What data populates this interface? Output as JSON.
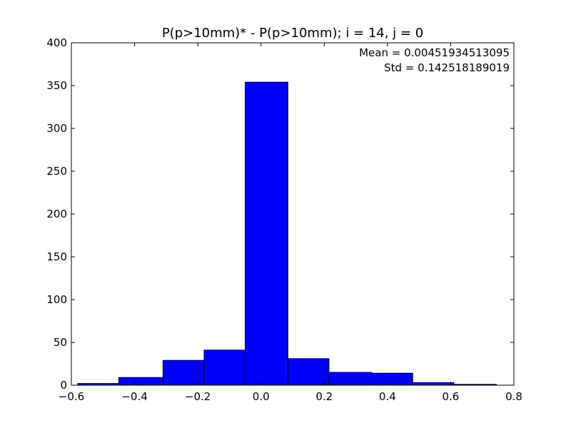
{
  "chart_data": {
    "type": "bar",
    "title": "P(p>10mm)* - P(p>10mm); i = 14, j = 0",
    "xlabel": "",
    "ylabel": "",
    "xlim": [
      -0.6,
      0.8
    ],
    "ylim": [
      0,
      400
    ],
    "xticks": [
      -0.6,
      -0.4,
      -0.2,
      0.0,
      0.2,
      0.4,
      0.6,
      0.8
    ],
    "xtick_labels": [
      "−0.6",
      "−0.4",
      "−0.2",
      "0.0",
      "0.2",
      "0.4",
      "0.6",
      "0.8"
    ],
    "yticks": [
      0,
      50,
      100,
      150,
      200,
      250,
      300,
      350,
      400
    ],
    "ytick_labels": [
      "0",
      "50",
      "100",
      "150",
      "200",
      "250",
      "300",
      "350",
      "400"
    ],
    "bins": [
      {
        "x0": -0.58,
        "x1": -0.45,
        "count": 2
      },
      {
        "x0": -0.45,
        "x1": -0.31,
        "count": 9
      },
      {
        "x0": -0.31,
        "x1": -0.18,
        "count": 29
      },
      {
        "x0": -0.18,
        "x1": -0.05,
        "count": 41
      },
      {
        "x0": -0.05,
        "x1": 0.085,
        "count": 354
      },
      {
        "x0": 0.085,
        "x1": 0.215,
        "count": 31
      },
      {
        "x0": 0.215,
        "x1": 0.35,
        "count": 15
      },
      {
        "x0": 0.35,
        "x1": 0.48,
        "count": 14
      },
      {
        "x0": 0.48,
        "x1": 0.61,
        "count": 3
      },
      {
        "x0": 0.61,
        "x1": 0.745,
        "count": 1
      }
    ],
    "bar_color": "#0000ff",
    "edge_color": "#000000",
    "grid": false,
    "annotations": [
      "Mean = 0.00451934513095",
      "Std = 0.142518189019"
    ],
    "annotation_placement": "top-right"
  }
}
